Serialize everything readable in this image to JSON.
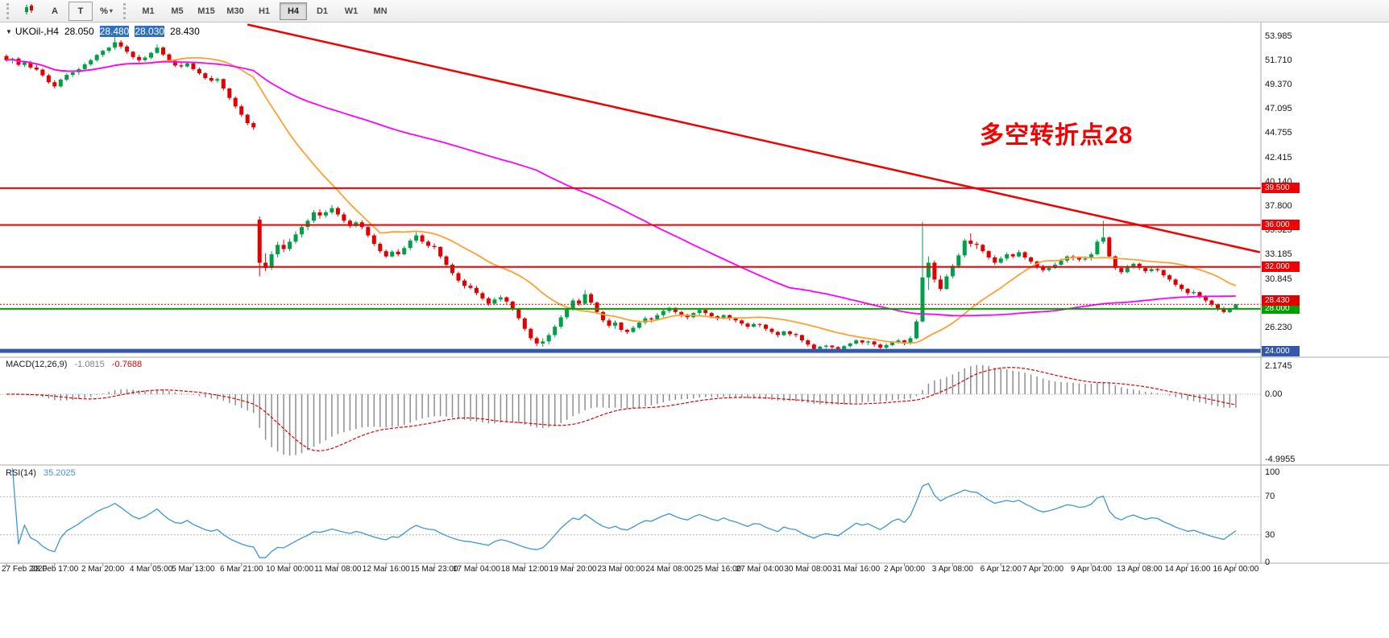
{
  "toolbar": {
    "tools": [
      {
        "id": "chart-type",
        "label": ""
      },
      {
        "id": "font",
        "label": "A"
      },
      {
        "id": "text",
        "label": "T"
      },
      {
        "id": "percent",
        "label": "%",
        "caret": "▾"
      }
    ],
    "timeframes": [
      "M1",
      "M5",
      "M15",
      "M30",
      "H1",
      "H4",
      "D1",
      "W1",
      "MN"
    ],
    "active_timeframe": "H4"
  },
  "header": {
    "collapse_icon": "▼",
    "symbol": "UKOil-,H4",
    "open": "28.050",
    "high": "28.480",
    "low": "28.030",
    "close": "28.430"
  },
  "annotation": {
    "text": "多空转折点28",
    "color": "#f40000"
  },
  "indicators": {
    "macd": {
      "name": "MACD(12,26,9)",
      "main_value": "-1.0815",
      "signal_value": "-0.7688"
    },
    "rsi": {
      "name": "RSI(14)",
      "value": "35.2025"
    }
  },
  "chart_data": {
    "type": "candlestick",
    "symbol": "UKOil-",
    "timeframe": "H4",
    "up_color": "#00a04a",
    "down_color": "#e00000",
    "y_axis_labels": [
      53.985,
      51.71,
      49.37,
      47.095,
      44.755,
      42.415,
      40.14,
      37.8,
      35.525,
      33.185,
      30.845,
      26.23
    ],
    "current_price": {
      "value": 28.43,
      "label": "28.430",
      "color": "#e00000"
    },
    "hlines": [
      {
        "price": 39.5,
        "label": "39.500",
        "color": "#f00000",
        "width": 2
      },
      {
        "price": 36.0,
        "label": "36.000",
        "color": "#f00000",
        "width": 2
      },
      {
        "price": 32.0,
        "label": "32.000",
        "color": "#f00000",
        "width": 2
      },
      {
        "price": 28.0,
        "label": "28.000",
        "color": "#00a000",
        "width": 2
      },
      {
        "price": 24.0,
        "label": "24.000",
        "color": "#3558a8",
        "width": 5
      }
    ],
    "trendline": {
      "from_bar": 40,
      "from_price": 55.1,
      "to_bar": 208,
      "to_price": 33.4,
      "color": "#f00000",
      "width": 2.5
    },
    "moving_averages": [
      {
        "period": 21,
        "color": "#ffa033"
      },
      {
        "period": 89,
        "color": "#ff00ff"
      }
    ],
    "macd": {
      "fast": 12,
      "slow": 26,
      "signal": 9,
      "histogram_color": "#8e8e8e",
      "signal_color": "#e00000",
      "scale_labels": [
        {
          "text": "2.1745",
          "value": 2.1745
        },
        {
          "text": "0.00",
          "value": 0
        },
        {
          "text": "-4.9955",
          "value": -4.9955
        }
      ]
    },
    "rsi": {
      "period": 14,
      "line_color": "#3e95d8",
      "levels": [
        70,
        30
      ],
      "scale_labels": [
        {
          "text": "100",
          "value": 100
        },
        {
          "text": "70",
          "value": 70
        },
        {
          "text": "30",
          "value": 30
        },
        {
          "text": "0",
          "value": 0
        }
      ]
    },
    "x_labels": [
      "27 Feb 2020",
      "28 Feb 17:00",
      "2 Mar 20:00",
      "4 Mar 05:00",
      "5 Mar 13:00",
      "6 Mar 21:00",
      "10 Mar 00:00",
      "11 Mar 08:00",
      "12 Mar 16:00",
      "15 Mar 23:00",
      "17 Mar 04:00",
      "18 Mar 12:00",
      "19 Mar 20:00",
      "23 Mar 00:00",
      "24 Mar 08:00",
      "25 Mar 16:00",
      "27 Mar 04:00",
      "30 Mar 08:00",
      "31 Mar 16:00",
      "2 Apr 00:00",
      "3 Apr 08:00",
      "6 Apr 12:00",
      "7 Apr 20:00",
      "9 Apr 04:00",
      "13 Apr 08:00",
      "14 Apr 16:00",
      "16 Apr 00:00"
    ],
    "x_label_bars": [
      0,
      8,
      16,
      24,
      31,
      39,
      47,
      55,
      63,
      71,
      78,
      86,
      94,
      102,
      110,
      118,
      125,
      133,
      141,
      149,
      157,
      165,
      172,
      180,
      188,
      196,
      204
    ],
    "ohlc": [
      [
        52.1,
        52.25,
        51.55,
        51.7
      ],
      [
        51.7,
        51.95,
        51.4,
        51.85
      ],
      [
        51.85,
        52,
        51.1,
        51.25
      ],
      [
        51.25,
        51.6,
        51.05,
        51.5
      ],
      [
        51.5,
        51.65,
        50.85,
        51
      ],
      [
        51,
        51.3,
        50.7,
        50.8
      ],
      [
        50.8,
        50.9,
        50.1,
        50.25
      ],
      [
        50.25,
        50.4,
        49.45,
        49.6
      ],
      [
        49.6,
        49.8,
        49,
        49.2
      ],
      [
        49.2,
        49.95,
        49.1,
        49.85
      ],
      [
        49.85,
        50.45,
        49.7,
        50.3
      ],
      [
        50.3,
        50.7,
        50.1,
        50.55
      ],
      [
        50.55,
        51,
        50.3,
        50.85
      ],
      [
        50.85,
        51.45,
        50.7,
        51.3
      ],
      [
        51.3,
        51.85,
        51.15,
        51.7
      ],
      [
        51.7,
        52.3,
        51.55,
        52.2
      ],
      [
        52.2,
        52.7,
        52,
        52.6
      ],
      [
        52.6,
        53,
        52.4,
        52.9
      ],
      [
        52.9,
        53.9,
        52.7,
        53.4
      ],
      [
        53.4,
        53.6,
        52.8,
        53
      ],
      [
        53,
        53.15,
        52.3,
        52.5
      ],
      [
        52.5,
        52.6,
        51.8,
        52
      ],
      [
        52,
        52.2,
        51.5,
        51.7
      ],
      [
        51.7,
        52.1,
        51.55,
        51.95
      ],
      [
        51.95,
        52.5,
        51.8,
        52.4
      ],
      [
        52.4,
        53.2,
        52.3,
        52.9
      ],
      [
        52.9,
        53,
        52.1,
        52.25
      ],
      [
        52.25,
        52.35,
        51.5,
        51.65
      ],
      [
        51.65,
        51.8,
        51.05,
        51.2
      ],
      [
        51.2,
        51.45,
        50.95,
        51.1
      ],
      [
        51.1,
        51.55,
        51,
        51.4
      ],
      [
        51.4,
        51.5,
        50.7,
        50.85
      ],
      [
        50.85,
        51,
        50.3,
        50.45
      ],
      [
        50.45,
        50.55,
        49.85,
        50
      ],
      [
        50,
        50.2,
        49.6,
        49.75
      ],
      [
        49.75,
        50.05,
        49.55,
        49.9
      ],
      [
        49.9,
        49.95,
        48.8,
        49
      ],
      [
        49,
        49.1,
        47.9,
        48.1
      ],
      [
        48.1,
        48.25,
        47.1,
        47.3
      ],
      [
        47.3,
        47.45,
        46.3,
        46.5
      ],
      [
        46.5,
        46.6,
        45.5,
        45.7
      ],
      [
        45.7,
        45.85,
        45.05,
        45.3
      ],
      [
        36.5,
        36.8,
        31.1,
        32.4
      ],
      [
        32.4,
        33.3,
        31.6,
        31.9
      ],
      [
        31.9,
        33.5,
        31.7,
        33.2
      ],
      [
        33.2,
        34.4,
        32.9,
        34.1
      ],
      [
        34.1,
        34.6,
        33.4,
        33.7
      ],
      [
        33.7,
        34.7,
        33.5,
        34.4
      ],
      [
        34.4,
        35.4,
        34.2,
        35.1
      ],
      [
        35.1,
        36,
        34.8,
        35.8
      ],
      [
        35.8,
        36.6,
        35.5,
        36.4
      ],
      [
        36.4,
        37.4,
        36.2,
        37.2
      ],
      [
        37.2,
        37.5,
        36.6,
        36.9
      ],
      [
        36.9,
        37.4,
        36.7,
        37.2
      ],
      [
        37.2,
        37.9,
        37,
        37.6
      ],
      [
        37.6,
        37.75,
        36.8,
        37
      ],
      [
        37,
        37.2,
        36.2,
        36.4
      ],
      [
        36.4,
        36.55,
        35.7,
        35.9
      ],
      [
        35.9,
        36.4,
        35.75,
        36.25
      ],
      [
        36.25,
        36.45,
        35.6,
        35.8
      ],
      [
        35.8,
        35.9,
        34.8,
        35
      ],
      [
        35,
        35.15,
        34,
        34.2
      ],
      [
        34.2,
        34.35,
        33.3,
        33.5
      ],
      [
        33.5,
        33.65,
        32.85,
        33
      ],
      [
        33,
        33.6,
        32.9,
        33.45
      ],
      [
        33.45,
        33.7,
        33,
        33.2
      ],
      [
        33.2,
        34,
        33.1,
        33.8
      ],
      [
        33.8,
        34.7,
        33.6,
        34.5
      ],
      [
        34.5,
        35.3,
        34.3,
        35
      ],
      [
        35,
        35.15,
        34.2,
        34.4
      ],
      [
        34.4,
        34.55,
        33.8,
        34
      ],
      [
        34,
        34.25,
        33.7,
        33.9
      ],
      [
        33.9,
        33.95,
        32.8,
        33
      ],
      [
        33,
        33.1,
        32,
        32.2
      ],
      [
        32.2,
        32.35,
        31.2,
        31.4
      ],
      [
        31.4,
        31.55,
        30.5,
        30.7
      ],
      [
        30.7,
        30.85,
        29.95,
        30.2
      ],
      [
        30.2,
        30.45,
        29.85,
        30
      ],
      [
        30,
        30.2,
        29.3,
        29.5
      ],
      [
        29.5,
        29.65,
        28.8,
        29
      ],
      [
        29,
        29.15,
        28.3,
        28.5
      ],
      [
        28.5,
        29.1,
        28.35,
        28.9
      ],
      [
        28.9,
        29.3,
        28.7,
        29.1
      ],
      [
        29.1,
        29.2,
        28.5,
        28.7
      ],
      [
        28.7,
        28.75,
        27.8,
        28
      ],
      [
        28,
        28.1,
        26.9,
        27.1
      ],
      [
        27.1,
        27.2,
        25.9,
        26.1
      ],
      [
        26.1,
        26.2,
        25,
        25.2
      ],
      [
        25.2,
        25.35,
        24.45,
        24.7
      ],
      [
        24.7,
        25.2,
        24.4,
        24.9
      ],
      [
        24.9,
        25.7,
        24.6,
        25.5
      ],
      [
        25.5,
        26.5,
        25.3,
        26.3
      ],
      [
        26.3,
        27.4,
        26.1,
        27.2
      ],
      [
        27.2,
        28.2,
        27,
        28
      ],
      [
        28,
        29,
        27.8,
        28.8
      ],
      [
        28.8,
        29,
        28.3,
        28.5
      ],
      [
        28.5,
        29.8,
        28.4,
        29.4
      ],
      [
        29.4,
        29.55,
        28.4,
        28.6
      ],
      [
        28.6,
        28.7,
        27.5,
        27.7
      ],
      [
        27.7,
        27.8,
        26.7,
        26.9
      ],
      [
        26.9,
        27.1,
        26.2,
        26.4
      ],
      [
        26.4,
        26.9,
        26.1,
        26.7
      ],
      [
        26.7,
        26.75,
        25.8,
        26
      ],
      [
        26,
        26.1,
        25.6,
        25.8
      ],
      [
        25.8,
        26.4,
        25.7,
        26.2
      ],
      [
        26.2,
        26.9,
        26.1,
        26.7
      ],
      [
        26.7,
        27.3,
        26.5,
        27.1
      ],
      [
        27.1,
        27.2,
        26.7,
        27
      ],
      [
        27,
        27.6,
        26.9,
        27.4
      ],
      [
        27.4,
        28,
        27.2,
        27.8
      ],
      [
        27.8,
        28.2,
        27.6,
        28.1
      ],
      [
        28.1,
        28.15,
        27.5,
        27.7
      ],
      [
        27.7,
        27.8,
        27.2,
        27.4
      ],
      [
        27.4,
        27.55,
        27,
        27.2
      ],
      [
        27.2,
        27.7,
        27.1,
        27.6
      ],
      [
        27.6,
        28,
        27.4,
        27.9
      ],
      [
        27.9,
        28,
        27.4,
        27.6
      ],
      [
        27.6,
        27.7,
        27.1,
        27.3
      ],
      [
        27.3,
        27.4,
        26.9,
        27.1
      ],
      [
        27.1,
        27.5,
        27,
        27.4
      ],
      [
        27.4,
        27.45,
        26.9,
        27.1
      ],
      [
        27.1,
        27.2,
        26.7,
        26.9
      ],
      [
        26.9,
        27,
        26.4,
        26.6
      ],
      [
        26.6,
        26.7,
        26.1,
        26.3
      ],
      [
        26.3,
        26.7,
        26.2,
        26.55
      ],
      [
        26.55,
        26.65,
        26.25,
        26.5
      ],
      [
        26.5,
        26.55,
        25.9,
        26.1
      ],
      [
        26.1,
        26.2,
        25.6,
        25.8
      ],
      [
        25.8,
        25.9,
        25.3,
        25.5
      ],
      [
        25.5,
        25.95,
        25.4,
        25.85
      ],
      [
        25.85,
        25.95,
        25.4,
        25.6
      ],
      [
        25.6,
        25.7,
        25.3,
        25.5
      ],
      [
        25.5,
        25.55,
        24.8,
        25
      ],
      [
        25,
        25.1,
        24.4,
        24.6
      ],
      [
        24.6,
        24.7,
        23.95,
        24.2
      ],
      [
        24.2,
        24.5,
        24.05,
        24.4
      ],
      [
        24.4,
        24.6,
        24.2,
        24.5
      ],
      [
        24.5,
        24.55,
        24.15,
        24.35
      ],
      [
        24.35,
        24.45,
        24,
        24.2
      ],
      [
        24.2,
        24.55,
        24.1,
        24.45
      ],
      [
        24.45,
        24.8,
        24.3,
        24.7
      ],
      [
        24.7,
        25.1,
        24.6,
        25
      ],
      [
        25,
        25.05,
        24.6,
        24.8
      ],
      [
        24.8,
        25,
        24.55,
        24.9
      ],
      [
        24.9,
        24.95,
        24.4,
        24.6
      ],
      [
        24.6,
        24.7,
        24.1,
        24.3
      ],
      [
        24.3,
        24.7,
        24.2,
        24.55
      ],
      [
        24.55,
        24.95,
        24.45,
        24.85
      ],
      [
        24.85,
        25.15,
        24.7,
        25
      ],
      [
        25,
        25.05,
        24.55,
        24.7
      ],
      [
        24.7,
        25.4,
        24.6,
        25.2
      ],
      [
        25.2,
        27,
        25.1,
        26.8
      ],
      [
        26.8,
        36.3,
        26.7,
        31
      ],
      [
        31,
        33,
        29.8,
        32.4
      ],
      [
        32.4,
        32.6,
        30.5,
        30.8
      ],
      [
        30.8,
        31.2,
        29.7,
        29.9
      ],
      [
        29.9,
        31.3,
        29.8,
        31.1
      ],
      [
        31.1,
        32.3,
        30.9,
        32.1
      ],
      [
        32.1,
        33.3,
        31.9,
        33.1
      ],
      [
        33.1,
        34.7,
        32.9,
        34.5
      ],
      [
        34.5,
        35.2,
        33.9,
        34.2
      ],
      [
        34.2,
        34.4,
        33.7,
        34.1
      ],
      [
        34.1,
        34.2,
        33.3,
        33.5
      ],
      [
        33.5,
        33.6,
        32.7,
        32.9
      ],
      [
        32.9,
        33.1,
        32.2,
        32.4
      ],
      [
        32.4,
        33,
        32.3,
        32.8
      ],
      [
        32.8,
        33.4,
        32.6,
        33.2
      ],
      [
        33.2,
        33.3,
        32.8,
        33
      ],
      [
        33,
        33.6,
        32.9,
        33.4
      ],
      [
        33.4,
        33.5,
        32.7,
        32.9
      ],
      [
        32.9,
        33,
        32.3,
        32.5
      ],
      [
        32.5,
        32.6,
        31.8,
        32
      ],
      [
        32,
        32.2,
        31.5,
        31.7
      ],
      [
        31.7,
        32.1,
        31.55,
        31.9
      ],
      [
        31.9,
        32.4,
        31.8,
        32.2
      ],
      [
        32.2,
        32.8,
        32.1,
        32.6
      ],
      [
        32.6,
        33.1,
        32.4,
        33
      ],
      [
        33,
        33.15,
        32.6,
        32.9
      ],
      [
        32.9,
        33,
        32.5,
        32.7
      ],
      [
        32.7,
        33,
        32.55,
        32.8
      ],
      [
        32.8,
        33.4,
        32.6,
        33.2
      ],
      [
        33.2,
        34.6,
        33.1,
        34.4
      ],
      [
        34.4,
        36.4,
        34.2,
        34.8
      ],
      [
        34.8,
        34.9,
        32.8,
        33
      ],
      [
        33,
        33.1,
        31.7,
        31.9
      ],
      [
        31.9,
        32,
        31.3,
        31.5
      ],
      [
        31.5,
        32.2,
        31.4,
        32
      ],
      [
        32,
        32.4,
        31.8,
        32.3
      ],
      [
        32.3,
        32.4,
        31.7,
        31.9
      ],
      [
        31.9,
        32,
        31.4,
        31.6
      ],
      [
        31.6,
        32,
        31.5,
        31.8
      ],
      [
        31.8,
        31.9,
        31.5,
        31.7
      ],
      [
        31.7,
        31.75,
        31,
        31.2
      ],
      [
        31.2,
        31.3,
        30.6,
        30.8
      ],
      [
        30.8,
        30.9,
        30.1,
        30.3
      ],
      [
        30.3,
        30.4,
        29.7,
        29.9
      ],
      [
        29.9,
        30,
        29.3,
        29.5
      ],
      [
        29.5,
        29.8,
        29.35,
        29.6
      ],
      [
        29.6,
        29.65,
        29,
        29.2
      ],
      [
        29.2,
        29.3,
        28.6,
        28.8
      ],
      [
        28.8,
        28.9,
        28.2,
        28.4
      ],
      [
        28.4,
        28.5,
        27.8,
        28
      ],
      [
        28,
        28.2,
        27.55,
        27.7
      ],
      [
        27.7,
        28.1,
        27.6,
        28.05
      ],
      [
        28.05,
        28.48,
        28.03,
        28.43
      ]
    ]
  }
}
